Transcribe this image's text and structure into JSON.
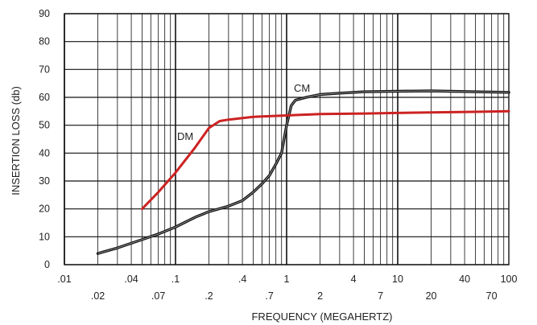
{
  "chart_data": {
    "type": "line",
    "title": "",
    "xlabel": "FREQUENCY (MEGAHERTZ)",
    "ylabel": "INSERTION LOSS (db)",
    "x_scale": "log",
    "xlim": [
      0.01,
      100
    ],
    "ylim": [
      0,
      90
    ],
    "grid": true,
    "x_ticks": [
      {
        "value": 0.01,
        "label": ".01",
        "row": "upper"
      },
      {
        "value": 0.02,
        "label": ".02",
        "row": "lower"
      },
      {
        "value": 0.04,
        "label": ".04",
        "row": "upper"
      },
      {
        "value": 0.07,
        "label": ".07",
        "row": "lower"
      },
      {
        "value": 0.1,
        "label": ".1",
        "row": "upper"
      },
      {
        "value": 0.2,
        "label": ".2",
        "row": "lower"
      },
      {
        "value": 0.4,
        "label": ".4",
        "row": "upper"
      },
      {
        "value": 0.7,
        "label": ".7",
        "row": "lower"
      },
      {
        "value": 1,
        "label": "1",
        "row": "upper"
      },
      {
        "value": 2,
        "label": "2",
        "row": "lower"
      },
      {
        "value": 4,
        "label": "4",
        "row": "upper"
      },
      {
        "value": 7,
        "label": "7",
        "row": "lower"
      },
      {
        "value": 10,
        "label": "10",
        "row": "upper"
      },
      {
        "value": 20,
        "label": "20",
        "row": "lower"
      },
      {
        "value": 40,
        "label": "40",
        "row": "upper"
      },
      {
        "value": 70,
        "label": "70",
        "row": "lower"
      },
      {
        "value": 100,
        "label": "100",
        "row": "upper"
      }
    ],
    "y_ticks": [
      {
        "value": 0,
        "label": "0"
      },
      {
        "value": 10,
        "label": "10"
      },
      {
        "value": 20,
        "label": "20"
      },
      {
        "value": 30,
        "label": "30"
      },
      {
        "value": 40,
        "label": "40"
      },
      {
        "value": 50,
        "label": "50"
      },
      {
        "value": 60,
        "label": "60"
      },
      {
        "value": 70,
        "label": "70"
      },
      {
        "value": 80,
        "label": "80"
      },
      {
        "value": 90,
        "label": "90"
      }
    ],
    "series": [
      {
        "name": "CM",
        "color": "#111111",
        "x": [
          0.02,
          0.03,
          0.05,
          0.07,
          0.1,
          0.15,
          0.2,
          0.3,
          0.4,
          0.5,
          0.6,
          0.7,
          0.8,
          0.9,
          1.0,
          1.1,
          1.2,
          1.5,
          2,
          3,
          5,
          10,
          20,
          50,
          100
        ],
        "y": [
          4,
          6,
          9,
          11,
          13.5,
          17,
          19,
          21,
          23,
          26,
          29,
          32,
          36,
          40,
          50,
          57,
          59,
          60,
          61,
          61.5,
          62,
          62.2,
          62.3,
          62,
          61.8
        ]
      },
      {
        "name": "DM",
        "color": "#cc2222",
        "x": [
          0.05,
          0.07,
          0.1,
          0.15,
          0.2,
          0.25,
          0.3,
          0.5,
          1,
          2,
          5,
          10,
          20,
          50,
          100
        ],
        "y": [
          20,
          26,
          33,
          42,
          49,
          51.5,
          52,
          53,
          53.5,
          54,
          54.2,
          54.4,
          54.6,
          54.8,
          55
        ]
      }
    ]
  }
}
